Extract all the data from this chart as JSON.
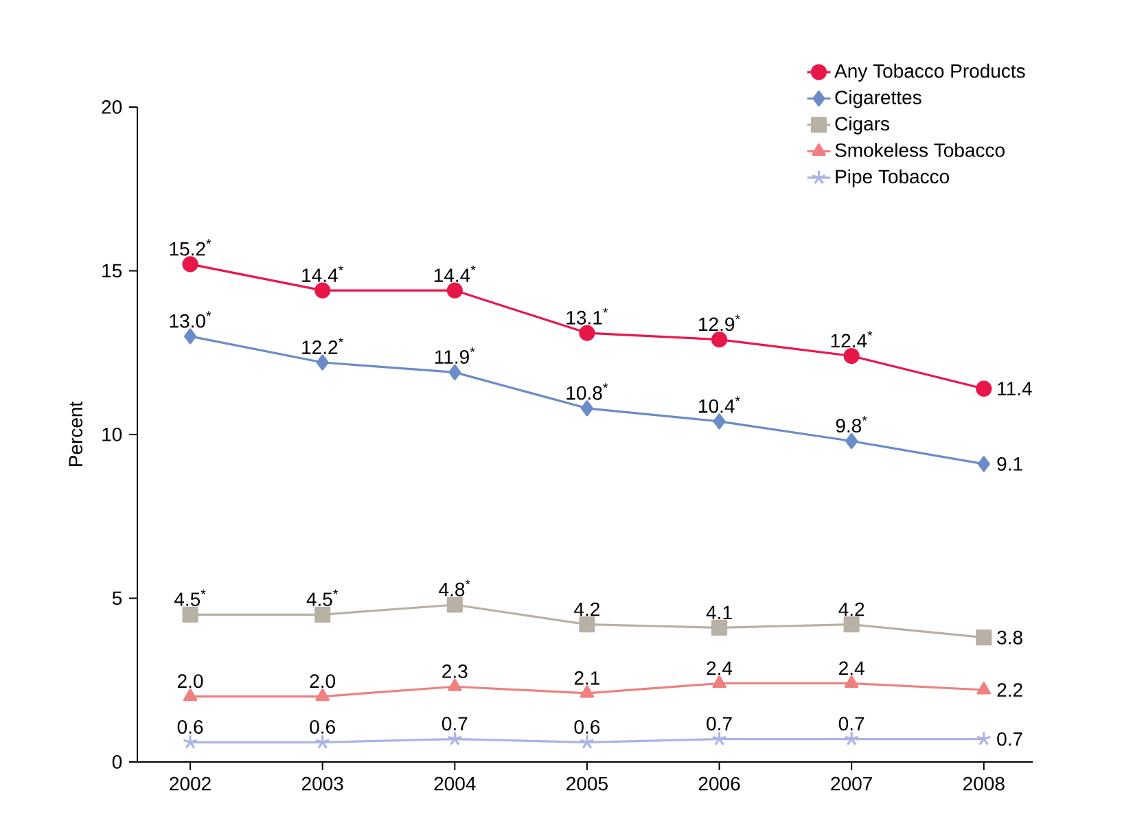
{
  "chart_data": {
    "type": "line",
    "ylabel": "Percent",
    "categories": [
      "2002",
      "2003",
      "2004",
      "2005",
      "2006",
      "2007",
      "2008"
    ],
    "ylim": [
      0,
      20
    ],
    "yticks": [
      0,
      5,
      10,
      15,
      20
    ],
    "grid": false,
    "legend": "top right",
    "line_style": "solid",
    "series": [
      {
        "name": "Any Tobacco Products",
        "color": "#e8174a",
        "marker": "circle",
        "values": [
          15.2,
          14.4,
          14.4,
          13.1,
          12.9,
          12.4,
          11.4
        ],
        "value_labels": [
          "15.2$^{*}$",
          "14.4$^{*}$",
          "14.4$^{*}$",
          "13.1$^{*}$",
          "12.9$^{*}$",
          "12.4$^{*}$",
          "11.4"
        ]
      },
      {
        "name": "Cigarettes",
        "color": "#6b8cc8",
        "marker": "diamond",
        "values": [
          13.0,
          12.2,
          11.9,
          10.8,
          10.4,
          9.8,
          9.1
        ],
        "value_labels": [
          "13.0$^{*}$",
          "12.2$^{*}$",
          "11.9$^{*}$",
          "10.8$^{*}$",
          "10.4$^{*}$",
          "9.8$^{*}$",
          "9.1"
        ]
      },
      {
        "name": "Cigars",
        "color": "#b9b1a5",
        "marker": "square",
        "values": [
          4.5,
          4.5,
          4.8,
          4.2,
          4.1,
          4.2,
          3.8
        ],
        "value_labels": [
          "4.5$^{*}$",
          "4.5$^{*}$",
          "4.8$^{*}$",
          "4.2",
          "4.1",
          "4.2",
          "3.8"
        ]
      },
      {
        "name": "Smokeless Tobacco",
        "color": "#f08080",
        "marker": "triangle",
        "values": [
          2.0,
          2.0,
          2.3,
          2.1,
          2.4,
          2.4,
          2.2
        ],
        "value_labels": [
          "2.0",
          "2.0",
          "2.3",
          "2.1",
          "2.4",
          "2.4",
          "2.2"
        ]
      },
      {
        "name": "Pipe Tobacco",
        "color": "#aab4e6",
        "marker": "cross",
        "values": [
          0.6,
          0.6,
          0.7,
          0.6,
          0.7,
          0.7,
          0.7
        ],
        "value_labels": [
          "0.6",
          "0.6",
          "0.7",
          "0.6",
          "0.7",
          "0.7",
          "0.7"
        ]
      }
    ]
  }
}
